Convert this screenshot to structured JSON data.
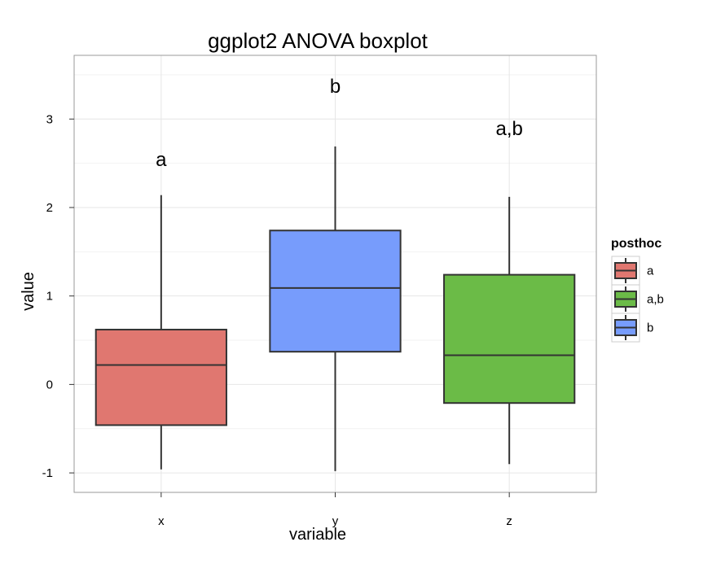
{
  "chart_data": {
    "type": "boxplot",
    "title": "ggplot2 ANOVA boxplot",
    "xlabel": "variable",
    "ylabel": "value",
    "ylim": [
      -1.22,
      3.72
    ],
    "yticks": [
      -1,
      0,
      1,
      2,
      3
    ],
    "grid": true,
    "legend": {
      "title": "posthoc",
      "position": "right",
      "entries": [
        {
          "label": "a",
          "color": "#E07770"
        },
        {
          "label": "a,b",
          "color": "#6BBB47"
        },
        {
          "label": "b",
          "color": "#779CFC"
        }
      ]
    },
    "categories": [
      "x",
      "y",
      "z"
    ],
    "boxes": [
      {
        "category": "x",
        "group": "a",
        "color": "#E07770",
        "whisker_low": -0.96,
        "q1": -0.46,
        "median": 0.22,
        "q3": 0.62,
        "whisker_high": 2.14,
        "label": "a",
        "label_y": 2.55
      },
      {
        "category": "y",
        "group": "b",
        "color": "#779CFC",
        "whisker_low": -0.98,
        "q1": 0.37,
        "median": 1.09,
        "q3": 1.74,
        "whisker_high": 2.69,
        "label": "b",
        "label_y": 3.38
      },
      {
        "category": "z",
        "group": "a,b",
        "color": "#6BBB47",
        "whisker_low": -0.9,
        "q1": -0.21,
        "median": 0.33,
        "q3": 1.24,
        "whisker_high": 2.12,
        "label": "a,b",
        "label_y": 2.9
      }
    ]
  }
}
